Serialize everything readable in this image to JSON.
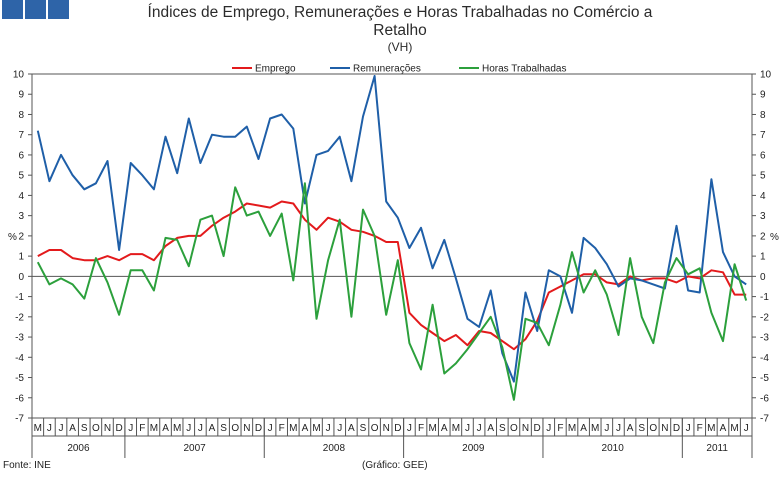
{
  "chart_data": {
    "type": "line",
    "title": "Índices de Emprego, Remunerações e Horas Trabalhadas no Comércio a Retalho",
    "title_line1": "Índices de Emprego, Remunerações e Horas Trabalhadas no Comércio a",
    "title_line2": "Retalho",
    "subtitle": "(VH)",
    "ylabel_left": "%",
    "ylabel_right": "%",
    "ylim": [
      -7,
      10
    ],
    "yticks": [
      -7,
      -6,
      -5,
      -4,
      -3,
      -2,
      -1,
      0,
      1,
      2,
      3,
      4,
      5,
      6,
      7,
      8,
      9,
      10
    ],
    "legend_position": "top-center",
    "month_labels": [
      "M",
      "J",
      "J",
      "A",
      "S",
      "O",
      "N",
      "D",
      "J",
      "F",
      "M",
      "A",
      "M",
      "J",
      "J",
      "A",
      "S",
      "O",
      "N",
      "D",
      "J",
      "F",
      "M",
      "A",
      "M",
      "J",
      "J",
      "A",
      "S",
      "O",
      "N",
      "D",
      "J",
      "F",
      "M",
      "A",
      "M",
      "J",
      "J",
      "A",
      "S",
      "O",
      "N",
      "D",
      "J",
      "F",
      "M",
      "A",
      "M",
      "J",
      "J",
      "A",
      "S",
      "O",
      "N",
      "D",
      "J",
      "F",
      "M",
      "A",
      "M",
      "J"
    ],
    "years": [
      {
        "label": "2006",
        "start": 0,
        "end": 8
      },
      {
        "label": "2007",
        "start": 8,
        "end": 20
      },
      {
        "label": "2008",
        "start": 20,
        "end": 32
      },
      {
        "label": "2009",
        "start": 32,
        "end": 44
      },
      {
        "label": "2010",
        "start": 44,
        "end": 56
      },
      {
        "label": "2011",
        "start": 56,
        "end": 62
      }
    ],
    "series": [
      {
        "name": "Emprego",
        "color": "#e31a1c",
        "values": [
          1.0,
          1.3,
          1.3,
          0.9,
          0.8,
          0.8,
          1.0,
          0.8,
          1.1,
          1.1,
          0.8,
          1.5,
          1.9,
          2.0,
          2.0,
          2.5,
          2.9,
          3.2,
          3.6,
          3.5,
          3.4,
          3.7,
          3.6,
          2.8,
          2.3,
          2.9,
          2.7,
          2.3,
          2.2,
          2.0,
          1.7,
          1.7,
          -1.8,
          -2.4,
          -2.8,
          -3.2,
          -2.9,
          -3.4,
          -2.7,
          -2.8,
          -3.2,
          -3.6,
          -3.1,
          -2.2,
          -0.8,
          -0.5,
          -0.2,
          0.1,
          0.1,
          -0.3,
          -0.4,
          0.0,
          -0.2,
          -0.1,
          -0.1,
          -0.3,
          0.0,
          -0.1,
          0.3,
          0.2,
          -0.9,
          -0.9
        ]
      },
      {
        "name": "Remunerações",
        "color": "#1f5fa8",
        "values": [
          7.2,
          4.7,
          6.0,
          5.0,
          4.3,
          4.6,
          5.7,
          1.3,
          5.6,
          5.0,
          4.3,
          6.9,
          5.1,
          7.8,
          5.6,
          7.0,
          6.9,
          6.9,
          7.4,
          5.8,
          7.8,
          8.0,
          7.3,
          3.6,
          6.0,
          6.2,
          6.9,
          4.7,
          7.9,
          9.9,
          3.7,
          2.9,
          1.4,
          2.4,
          0.4,
          1.8,
          -0.1,
          -2.1,
          -2.5,
          -0.7,
          -3.8,
          -5.2,
          -0.8,
          -2.7,
          0.3,
          0.0,
          -1.8,
          1.9,
          1.4,
          0.6,
          -0.5,
          -0.1,
          -0.2,
          -0.4,
          -0.6,
          2.5,
          -0.7,
          -0.8,
          4.8,
          1.2,
          0.0,
          -0.4
        ]
      },
      {
        "name": "Horas Trabalhadas",
        "color": "#2ca03c",
        "values": [
          0.7,
          -0.4,
          -0.1,
          -0.4,
          -1.1,
          0.9,
          -0.3,
          -1.9,
          0.3,
          0.3,
          -0.7,
          1.9,
          1.8,
          0.5,
          2.8,
          3.0,
          1.0,
          4.4,
          3.0,
          3.2,
          2.0,
          3.1,
          -0.2,
          4.6,
          -2.1,
          0.8,
          2.8,
          -2.0,
          3.3,
          2.0,
          -1.9,
          0.8,
          -3.3,
          -4.6,
          -1.4,
          -4.8,
          -4.3,
          -3.6,
          -2.8,
          -2.0,
          -3.5,
          -6.1,
          -2.1,
          -2.3,
          -3.4,
          -1.4,
          1.2,
          -0.8,
          0.3,
          -0.9,
          -2.9,
          0.9,
          -2.0,
          -3.3,
          -0.3,
          0.9,
          0.1,
          0.4,
          -1.8,
          -3.2,
          0.6,
          -1.2
        ]
      }
    ]
  },
  "footer": {
    "source": "Fonte: INE",
    "credit": "(Gráfico: GEE)"
  }
}
